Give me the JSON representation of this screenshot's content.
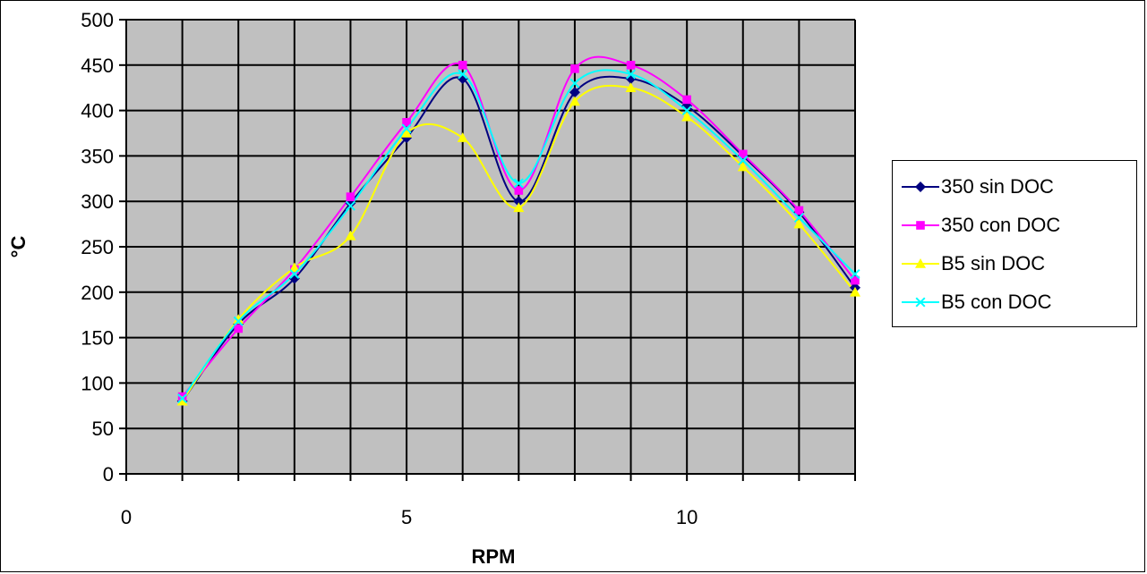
{
  "chart_data": {
    "type": "line",
    "title": "",
    "xlabel": "RPM",
    "ylabel": "°C",
    "xlim": [
      0,
      13
    ],
    "ylim": [
      0,
      500
    ],
    "xticks": [
      0,
      5,
      10
    ],
    "yticks": [
      0,
      50,
      100,
      150,
      200,
      250,
      300,
      350,
      400,
      450,
      500
    ],
    "grid": true,
    "smooth": true,
    "plot_background": "#c0c0c0",
    "legend_position": "right",
    "x": [
      1,
      2,
      3,
      4,
      5,
      6,
      7,
      8,
      9,
      10,
      11,
      12,
      13
    ],
    "series": [
      {
        "name": "350 sin DOC",
        "color": "#000080",
        "marker": "diamond",
        "values": [
          80,
          165,
          215,
          298,
          370,
          435,
          300,
          420,
          435,
          405,
          350,
          288,
          205
        ]
      },
      {
        "name": "350 con DOC",
        "color": "#ff00ff",
        "marker": "square",
        "values": [
          85,
          160,
          225,
          305,
          387,
          450,
          312,
          446,
          450,
          412,
          352,
          290,
          213
        ]
      },
      {
        "name": "B5 sin DOC",
        "color": "#ffff00",
        "marker": "triangle",
        "values": [
          80,
          170,
          227,
          262,
          375,
          370,
          293,
          410,
          425,
          393,
          338,
          275,
          200
        ]
      },
      {
        "name": "B5 con DOC",
        "color": "#00ffff",
        "marker": "x",
        "values": [
          83,
          168,
          220,
          295,
          380,
          440,
          320,
          430,
          440,
          400,
          345,
          282,
          220
        ]
      }
    ]
  }
}
